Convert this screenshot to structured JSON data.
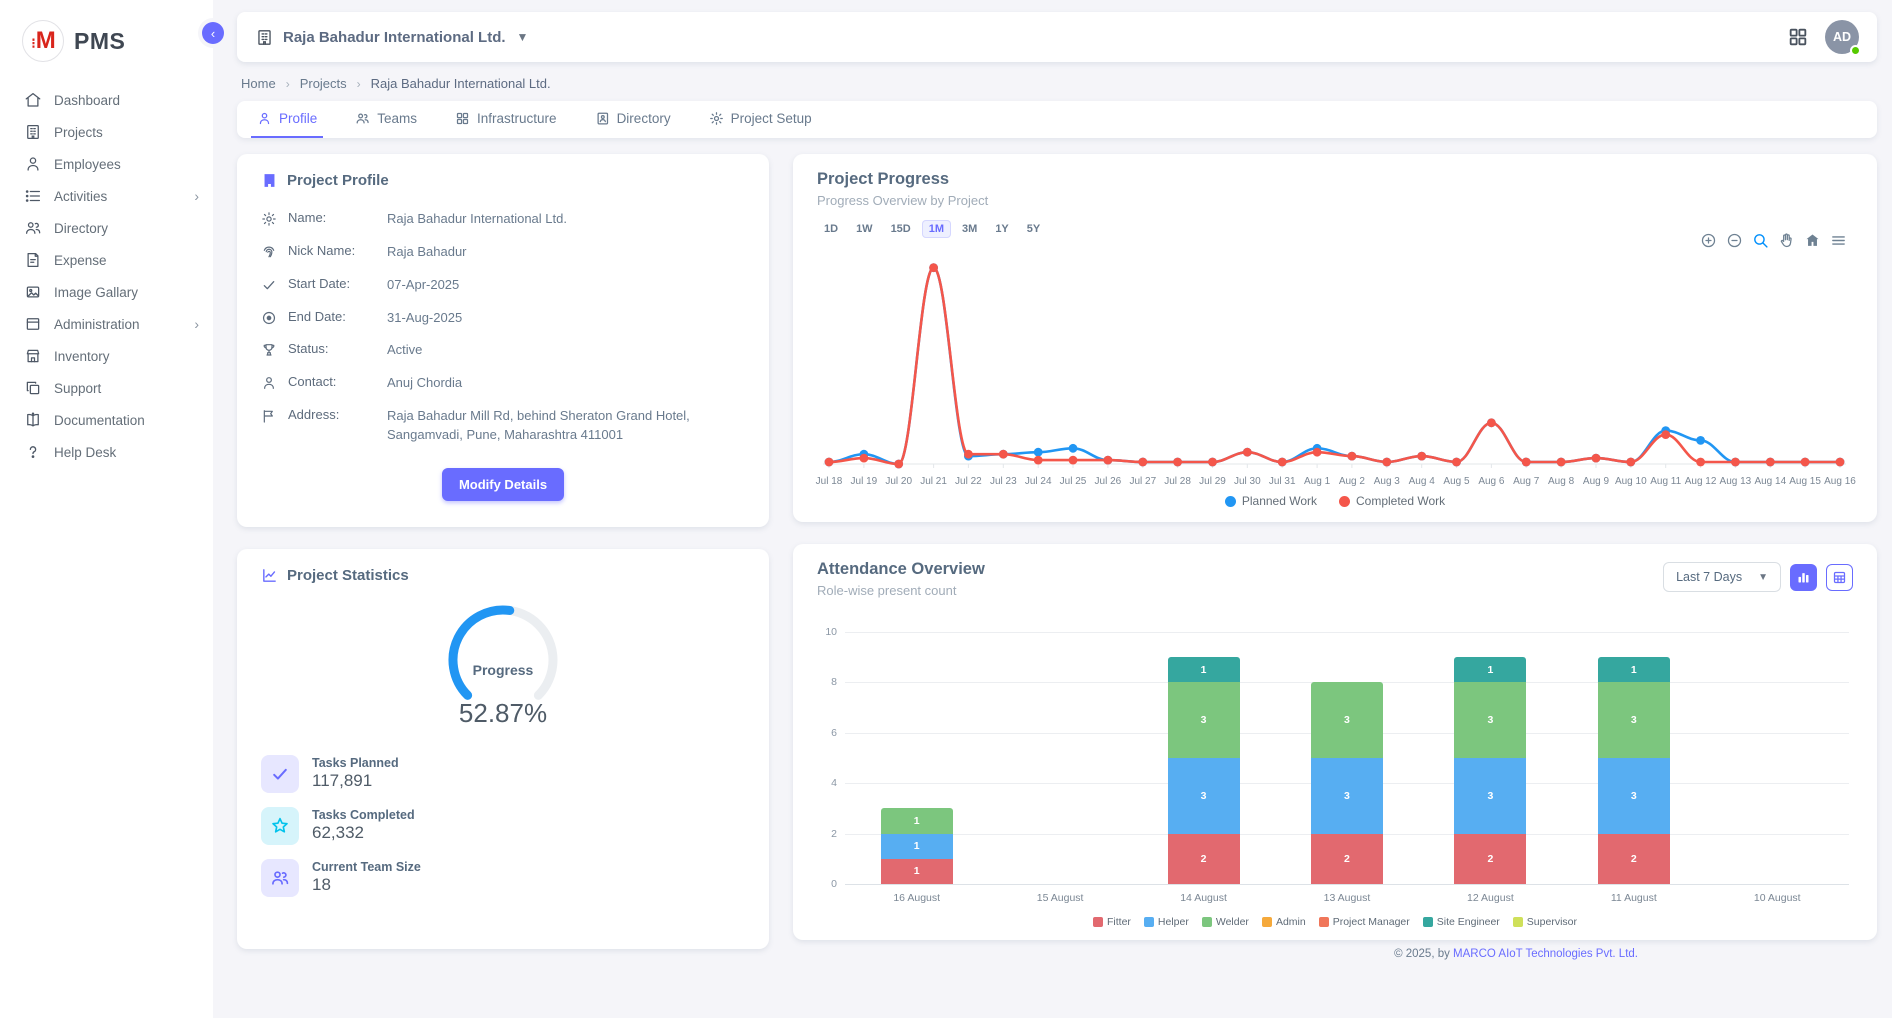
{
  "app": {
    "name": "PMS"
  },
  "sidebar": {
    "items": [
      {
        "label": "Dashboard",
        "icon": "home-icon"
      },
      {
        "label": "Projects",
        "icon": "building-icon"
      },
      {
        "label": "Employees",
        "icon": "person-icon"
      },
      {
        "label": "Activities",
        "icon": "list-icon",
        "has_submenu": true
      },
      {
        "label": "Directory",
        "icon": "people-icon"
      },
      {
        "label": "Expense",
        "icon": "receipt-icon"
      },
      {
        "label": "Image Gallary",
        "icon": "image-icon"
      },
      {
        "label": "Administration",
        "icon": "archive-icon",
        "has_submenu": true
      },
      {
        "label": "Inventory",
        "icon": "shop-icon"
      },
      {
        "label": "Support",
        "icon": "copy-icon"
      },
      {
        "label": "Documentation",
        "icon": "book-icon"
      },
      {
        "label": "Help Desk",
        "icon": "question-icon"
      }
    ]
  },
  "header": {
    "company": "Raja Bahadur International Ltd.",
    "avatar_initials": "AD"
  },
  "breadcrumb": {
    "items": [
      "Home",
      "Projects",
      "Raja Bahadur International Ltd."
    ]
  },
  "tabs": [
    {
      "label": "Profile",
      "active": true
    },
    {
      "label": "Teams"
    },
    {
      "label": "Infrastructure"
    },
    {
      "label": "Directory"
    },
    {
      "label": "Project Setup"
    }
  ],
  "project_profile": {
    "title": "Project Profile",
    "fields": [
      {
        "label": "Name:",
        "value": "Raja Bahadur International Ltd."
      },
      {
        "label": "Nick Name:",
        "value": "Raja Bahadur"
      },
      {
        "label": "Start Date:",
        "value": "07-Apr-2025"
      },
      {
        "label": "End Date:",
        "value": "31-Aug-2025"
      },
      {
        "label": "Status:",
        "value": "Active"
      },
      {
        "label": "Contact:",
        "value": "Anuj Chordia"
      },
      {
        "label": "Address:",
        "value": "Raja Bahadur Mill Rd, behind Sheraton Grand Hotel, Sangamvadi, Pune, Maharashtra 411001"
      }
    ],
    "button": "Modify Details"
  },
  "project_statistics": {
    "title": "Project Statistics",
    "gauge_label": "Progress",
    "progress_pct": 52.87,
    "progress_display": "52.87%",
    "gauge_color": "#2196f3",
    "stats": [
      {
        "label": "Tasks Planned",
        "value": "117,891"
      },
      {
        "label": "Tasks Completed",
        "value": "62,332"
      },
      {
        "label": "Current Team Size",
        "value": "18"
      }
    ]
  },
  "chart_data": [
    {
      "id": "project_progress",
      "type": "line",
      "title": "Project Progress",
      "subtitle": "Progress Overview by Project",
      "range_buttons": [
        "1D",
        "1W",
        "15D",
        "1M",
        "3M",
        "1Y",
        "5Y"
      ],
      "active_range": "1M",
      "x": [
        "Jul 18",
        "Jul 19",
        "Jul 20",
        "Jul 21",
        "Jul 22",
        "Jul 23",
        "Jul 24",
        "Jul 25",
        "Jul 26",
        "Jul 27",
        "Jul 28",
        "Jul 29",
        "Jul 30",
        "Jul 31",
        "Aug 1",
        "Aug 2",
        "Aug 3",
        "Aug 4",
        "Aug 5",
        "Aug 6",
        "Aug 7",
        "Aug 8",
        "Aug 9",
        "Aug 10",
        "Aug 11",
        "Aug 12",
        "Aug 13",
        "Aug 14",
        "Aug 15",
        "Aug 16"
      ],
      "series": [
        {
          "name": "Planned Work",
          "color": "#2196f3",
          "values": [
            1,
            5,
            0,
            100,
            4,
            5,
            6,
            8,
            2,
            1,
            1,
            1,
            6,
            1,
            8,
            4,
            1,
            4,
            1,
            21,
            1,
            1,
            3,
            1,
            17,
            12,
            1,
            1,
            1,
            1
          ]
        },
        {
          "name": "Completed Work",
          "color": "#f4564a",
          "values": [
            1,
            3,
            0,
            100,
            5,
            5,
            2,
            2,
            2,
            1,
            1,
            1,
            6,
            1,
            6,
            4,
            1,
            4,
            1,
            21,
            1,
            1,
            3,
            1,
            15,
            1,
            1,
            1,
            1,
            1
          ]
        }
      ],
      "ylim": [
        0,
        108
      ],
      "grid": false,
      "legend_position": "bottom"
    },
    {
      "id": "attendance_overview",
      "type": "bar",
      "stacked": true,
      "title": "Attendance Overview",
      "subtitle": "Role-wise present count",
      "filter_selected": "Last 7 Days",
      "categories": [
        "16 August",
        "15 August",
        "14 August",
        "13 August",
        "12 August",
        "11 August",
        "10 August"
      ],
      "series": [
        {
          "name": "Fitter",
          "color": "#e2696f",
          "values": [
            1,
            0,
            2,
            2,
            2,
            2,
            0
          ]
        },
        {
          "name": "Helper",
          "color": "#57aef2",
          "values": [
            1,
            0,
            3,
            3,
            3,
            3,
            0
          ]
        },
        {
          "name": "Welder",
          "color": "#7cc67e",
          "values": [
            1,
            0,
            3,
            3,
            3,
            3,
            0
          ]
        },
        {
          "name": "Admin",
          "color": "#f5a93b",
          "values": [
            0,
            0,
            0,
            0,
            0,
            0,
            0
          ]
        },
        {
          "name": "Project Manager",
          "color": "#f0765a",
          "values": [
            0,
            0,
            0,
            0,
            0,
            0,
            0
          ]
        },
        {
          "name": "Site Engineer",
          "color": "#35a79f",
          "values": [
            0,
            0,
            1,
            0,
            1,
            1,
            0
          ]
        },
        {
          "name": "Supervisor",
          "color": "#cfe05a",
          "values": [
            0,
            0,
            0,
            0,
            0,
            0,
            0
          ]
        }
      ],
      "ylim": [
        0,
        10
      ],
      "yticks": [
        0,
        2,
        4,
        6,
        8,
        10
      ],
      "grid": true,
      "legend_position": "bottom"
    }
  ],
  "footer": {
    "prefix": "© 2025, by ",
    "company": "MARCO AIoT Technologies Pvt. Ltd."
  }
}
